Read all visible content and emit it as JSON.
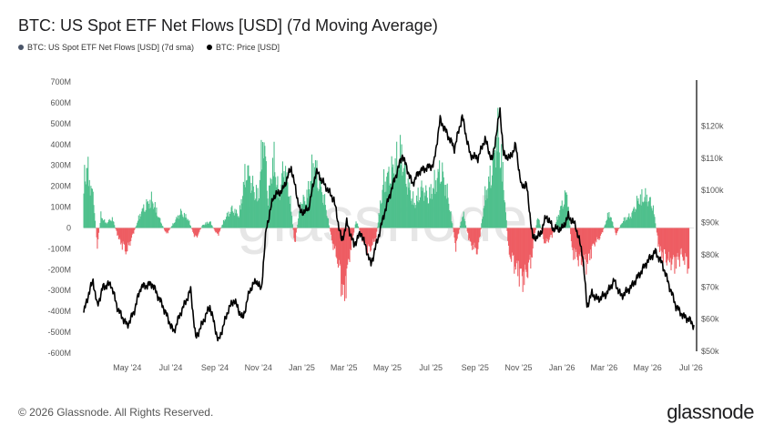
{
  "title": "BTC: US Spot ETF Net Flows [USD] (7d Moving Average)",
  "legend": {
    "flows": "BTC: US Spot ETF Net Flows [USD] (7d sma)",
    "price": "BTC: Price [USD]"
  },
  "footer": "© 2026 Glassnode. All Rights Reserved.",
  "brand": "glassnode",
  "watermark": "glassnode",
  "colors": {
    "positive": "#4fc08d",
    "negative": "#ee5d63",
    "price": "#000000",
    "legend_flows": "#4a5568"
  },
  "chart_data": {
    "type": "bar+line",
    "left_axis": {
      "ylim": [
        -600,
        700
      ],
      "ticks": [
        700,
        600,
        500,
        400,
        300,
        200,
        100,
        0,
        -100,
        -200,
        -300,
        -400,
        -500,
        -600
      ],
      "tick_labels": [
        "700M",
        "600M",
        "500M",
        "400M",
        "300M",
        "200M",
        "100M",
        "0",
        "-100M",
        "-200M",
        "-300M",
        "-400M",
        "-500M",
        "-600M"
      ],
      "unit": "M USD"
    },
    "right_axis": {
      "ylim": [
        50,
        130
      ],
      "ticks": [
        120,
        110,
        100,
        90,
        80,
        70,
        60,
        50
      ],
      "tick_labels": [
        "$120k",
        "$110k",
        "$100k",
        "$90k",
        "$80k",
        "$70k",
        "$60k",
        "$50k"
      ],
      "unit": "k USD"
    },
    "x_axis": {
      "start": "2024-03-01",
      "end": "2026-07-05",
      "ticks": [
        "2024-05-01",
        "2024-07-01",
        "2024-09-01",
        "2024-11-01",
        "2025-01-01",
        "2025-03-01",
        "2025-05-01",
        "2025-07-01",
        "2025-09-01",
        "2025-11-01",
        "2026-01-01",
        "2026-03-01",
        "2026-05-01",
        "2026-07-01"
      ],
      "tick_labels": [
        "May '24",
        "Jul '24",
        "Sep '24",
        "Nov '24",
        "Jan '25",
        "Mar '25",
        "May '25",
        "Jul '25",
        "Sep '25",
        "Nov '25",
        "Jan '26",
        "Mar '26",
        "May '26",
        "Jul '26"
      ]
    },
    "flows_series": {
      "name": "BTC: US Spot ETF Net Flows [USD] (7d sma)",
      "points": [
        [
          "2024-03-01",
          300
        ],
        [
          "2024-03-05",
          400
        ],
        [
          "2024-03-10",
          280
        ],
        [
          "2024-03-15",
          180
        ],
        [
          "2024-03-20",
          -120
        ],
        [
          "2024-03-25",
          80
        ],
        [
          "2024-04-01",
          30
        ],
        [
          "2024-04-10",
          60
        ],
        [
          "2024-04-20",
          -80
        ],
        [
          "2024-04-30",
          -150
        ],
        [
          "2024-05-10",
          -30
        ],
        [
          "2024-05-20",
          100
        ],
        [
          "2024-05-28",
          150
        ],
        [
          "2024-06-05",
          180
        ],
        [
          "2024-06-15",
          60
        ],
        [
          "2024-06-25",
          -40
        ],
        [
          "2024-07-05",
          30
        ],
        [
          "2024-07-15",
          100
        ],
        [
          "2024-07-25",
          60
        ],
        [
          "2024-08-05",
          -70
        ],
        [
          "2024-08-15",
          20
        ],
        [
          "2024-08-25",
          40
        ],
        [
          "2024-09-05",
          -50
        ],
        [
          "2024-09-15",
          60
        ],
        [
          "2024-09-25",
          120
        ],
        [
          "2024-10-05",
          80
        ],
        [
          "2024-10-15",
          380
        ],
        [
          "2024-10-25",
          250
        ],
        [
          "2024-11-01",
          200
        ],
        [
          "2024-11-08",
          600
        ],
        [
          "2024-11-15",
          180
        ],
        [
          "2024-11-22",
          450
        ],
        [
          "2024-11-30",
          200
        ],
        [
          "2024-12-07",
          400
        ],
        [
          "2024-12-15",
          200
        ],
        [
          "2024-12-22",
          -100
        ],
        [
          "2024-12-30",
          150
        ],
        [
          "2025-01-08",
          200
        ],
        [
          "2025-01-18",
          420
        ],
        [
          "2025-01-25",
          300
        ],
        [
          "2025-02-03",
          150
        ],
        [
          "2025-02-12",
          -80
        ],
        [
          "2025-02-20",
          -200
        ],
        [
          "2025-03-01",
          -450
        ],
        [
          "2025-03-08",
          -200
        ],
        [
          "2025-03-18",
          50
        ],
        [
          "2025-03-28",
          -80
        ],
        [
          "2025-04-05",
          -150
        ],
        [
          "2025-04-15",
          -60
        ],
        [
          "2025-04-25",
          280
        ],
        [
          "2025-05-05",
          350
        ],
        [
          "2025-05-12",
          400
        ],
        [
          "2025-05-20",
          480
        ],
        [
          "2025-05-28",
          300
        ],
        [
          "2025-06-08",
          150
        ],
        [
          "2025-06-18",
          250
        ],
        [
          "2025-06-28",
          200
        ],
        [
          "2025-07-08",
          300
        ],
        [
          "2025-07-15",
          380
        ],
        [
          "2025-07-25",
          200
        ],
        [
          "2025-08-05",
          -120
        ],
        [
          "2025-08-15",
          100
        ],
        [
          "2025-08-25",
          -100
        ],
        [
          "2025-09-05",
          -150
        ],
        [
          "2025-09-15",
          200
        ],
        [
          "2025-09-22",
          320
        ],
        [
          "2025-10-03",
          600
        ],
        [
          "2025-10-10",
          350
        ],
        [
          "2025-10-18",
          -150
        ],
        [
          "2025-10-28",
          -250
        ],
        [
          "2025-11-08",
          -330
        ],
        [
          "2025-11-18",
          -220
        ],
        [
          "2025-11-28",
          80
        ],
        [
          "2025-12-08",
          -100
        ],
        [
          "2025-12-18",
          -50
        ],
        [
          "2025-12-28",
          100
        ],
        [
          "2026-01-08",
          230
        ],
        [
          "2026-01-15",
          -150
        ],
        [
          "2026-01-25",
          -200
        ],
        [
          "2026-02-05",
          -230
        ],
        [
          "2026-02-15",
          -100
        ],
        [
          "2026-02-25",
          -50
        ],
        [
          "2026-03-08",
          100
        ],
        [
          "2026-03-18",
          -40
        ],
        [
          "2026-03-28",
          50
        ],
        [
          "2026-04-08",
          80
        ],
        [
          "2026-04-18",
          180
        ],
        [
          "2026-04-28",
          200
        ],
        [
          "2026-05-08",
          150
        ],
        [
          "2026-05-18",
          -150
        ],
        [
          "2026-05-28",
          -200
        ],
        [
          "2026-06-08",
          -230
        ],
        [
          "2026-06-18",
          -170
        ],
        [
          "2026-06-28",
          -250
        ]
      ]
    },
    "price_series": {
      "name": "BTC: Price [USD]",
      "points": [
        [
          "2024-03-01",
          62
        ],
        [
          "2024-03-08",
          68
        ],
        [
          "2024-03-14",
          72
        ],
        [
          "2024-03-20",
          64
        ],
        [
          "2024-03-28",
          70
        ],
        [
          "2024-04-08",
          71
        ],
        [
          "2024-04-18",
          63
        ],
        [
          "2024-05-01",
          58
        ],
        [
          "2024-05-10",
          62
        ],
        [
          "2024-05-20",
          70
        ],
        [
          "2024-06-05",
          71
        ],
        [
          "2024-06-20",
          64
        ],
        [
          "2024-07-05",
          56
        ],
        [
          "2024-07-15",
          62
        ],
        [
          "2024-07-29",
          69
        ],
        [
          "2024-08-05",
          54
        ],
        [
          "2024-08-15",
          59
        ],
        [
          "2024-08-25",
          64
        ],
        [
          "2024-09-06",
          53
        ],
        [
          "2024-09-20",
          63
        ],
        [
          "2024-09-28",
          66
        ],
        [
          "2024-10-10",
          60
        ],
        [
          "2024-10-20",
          69
        ],
        [
          "2024-10-29",
          72
        ],
        [
          "2024-11-05",
          69
        ],
        [
          "2024-11-12",
          88
        ],
        [
          "2024-11-22",
          98
        ],
        [
          "2024-12-05",
          100
        ],
        [
          "2024-12-17",
          107
        ],
        [
          "2024-12-30",
          93
        ],
        [
          "2025-01-10",
          94
        ],
        [
          "2025-01-21",
          106
        ],
        [
          "2025-02-01",
          102
        ],
        [
          "2025-02-15",
          97
        ],
        [
          "2025-02-26",
          84
        ],
        [
          "2025-03-05",
          90
        ],
        [
          "2025-03-15",
          83
        ],
        [
          "2025-03-25",
          87
        ],
        [
          "2025-04-08",
          77
        ],
        [
          "2025-04-20",
          87
        ],
        [
          "2025-04-28",
          94
        ],
        [
          "2025-05-12",
          104
        ],
        [
          "2025-05-22",
          111
        ],
        [
          "2025-06-05",
          102
        ],
        [
          "2025-06-15",
          106
        ],
        [
          "2025-06-25",
          107
        ],
        [
          "2025-07-05",
          108
        ],
        [
          "2025-07-14",
          122
        ],
        [
          "2025-07-25",
          117
        ],
        [
          "2025-08-03",
          113
        ],
        [
          "2025-08-14",
          123
        ],
        [
          "2025-08-25",
          111
        ],
        [
          "2025-09-05",
          110
        ],
        [
          "2025-09-15",
          116
        ],
        [
          "2025-09-25",
          109
        ],
        [
          "2025-10-06",
          125
        ],
        [
          "2025-10-11",
          111
        ],
        [
          "2025-10-20",
          110
        ],
        [
          "2025-10-28",
          114
        ],
        [
          "2025-11-05",
          101
        ],
        [
          "2025-11-12",
          102
        ],
        [
          "2025-11-21",
          85
        ],
        [
          "2025-12-01",
          86
        ],
        [
          "2025-12-10",
          92
        ],
        [
          "2025-12-20",
          88
        ],
        [
          "2026-01-01",
          88
        ],
        [
          "2026-01-10",
          92
        ],
        [
          "2026-01-20",
          89
        ],
        [
          "2026-01-30",
          80
        ],
        [
          "2026-02-05",
          64
        ],
        [
          "2026-02-12",
          68
        ],
        [
          "2026-02-20",
          66
        ],
        [
          "2026-03-05",
          68
        ],
        [
          "2026-03-15",
          72
        ],
        [
          "2026-03-25",
          67
        ],
        [
          "2026-04-08",
          70
        ],
        [
          "2026-04-20",
          74
        ],
        [
          "2026-05-01",
          78
        ],
        [
          "2026-05-12",
          81
        ],
        [
          "2026-05-22",
          77
        ],
        [
          "2026-06-01",
          70
        ],
        [
          "2026-06-10",
          64
        ],
        [
          "2026-06-20",
          61
        ],
        [
          "2026-06-28",
          60
        ],
        [
          "2026-07-05",
          58
        ]
      ]
    }
  }
}
